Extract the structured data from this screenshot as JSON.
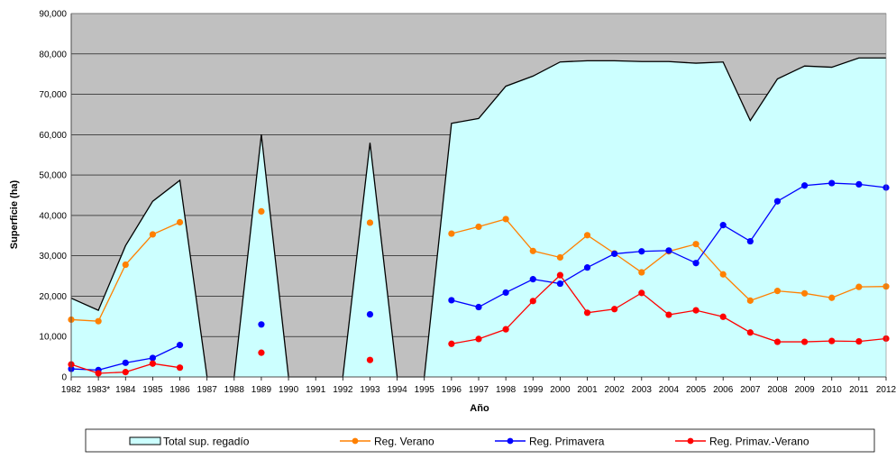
{
  "chart_data": {
    "type": "area",
    "title": "",
    "xlabel": "Año",
    "ylabel": "Superficie (ha)",
    "ylim": [
      0,
      90000
    ],
    "yticks": [
      "0",
      "10,000",
      "20,000",
      "30,000",
      "40,000",
      "50,000",
      "60,000",
      "70,000",
      "80,000",
      "90,000"
    ],
    "categories": [
      "1982",
      "1983*",
      "1984",
      "1985",
      "1986",
      "1987",
      "1988",
      "1989",
      "1990",
      "1991",
      "1992",
      "1993",
      "1994",
      "1995",
      "1996",
      "1997",
      "1998",
      "1999",
      "2000",
      "2001",
      "2002",
      "2003",
      "2004",
      "2005",
      "2006",
      "2007",
      "2008",
      "2009",
      "2010",
      "2011",
      "2012"
    ],
    "grid": true,
    "legend_position": "bottom",
    "plot_background": "#c0c0c0",
    "series": [
      {
        "name": "Total sup. regadío",
        "kind": "area",
        "fill": "#ccffff",
        "stroke": "#000000",
        "values": [
          19500,
          16500,
          32500,
          43500,
          48700,
          0,
          0,
          60000,
          0,
          0,
          0,
          58000,
          0,
          0,
          62800,
          64000,
          72000,
          74500,
          78000,
          78300,
          78300,
          78100,
          78100,
          77700,
          78000,
          63500,
          73800,
          77000,
          76700,
          79000,
          79000
        ]
      },
      {
        "name": "Reg. Verano",
        "kind": "line",
        "color": "#ff8000",
        "values": [
          14200,
          13800,
          27800,
          35300,
          38300,
          null,
          null,
          41000,
          null,
          null,
          null,
          38200,
          null,
          null,
          35500,
          37200,
          39100,
          31200,
          29600,
          35100,
          30600,
          25900,
          31100,
          32900,
          25400,
          18900,
          21300,
          20700,
          19600,
          22300,
          22400
        ]
      },
      {
        "name": "Reg. Primavera",
        "kind": "line",
        "color": "#0000ff",
        "values": [
          2000,
          1700,
          3500,
          4700,
          7900,
          null,
          null,
          13000,
          null,
          null,
          null,
          15500,
          null,
          null,
          19000,
          17300,
          20900,
          24200,
          23100,
          27100,
          30500,
          31100,
          31300,
          28200,
          37600,
          33600,
          43500,
          47400,
          48000,
          47700,
          46900
        ]
      },
      {
        "name": "Reg. Primav.-Verano",
        "kind": "line",
        "color": "#ff0000",
        "values": [
          3100,
          900,
          1200,
          3300,
          2300,
          null,
          null,
          6000,
          null,
          null,
          null,
          4200,
          null,
          null,
          8200,
          9400,
          11800,
          18800,
          25200,
          15900,
          16800,
          20800,
          15400,
          16500,
          14900,
          11000,
          8700,
          8700,
          8900,
          8800,
          9500
        ]
      }
    ]
  }
}
